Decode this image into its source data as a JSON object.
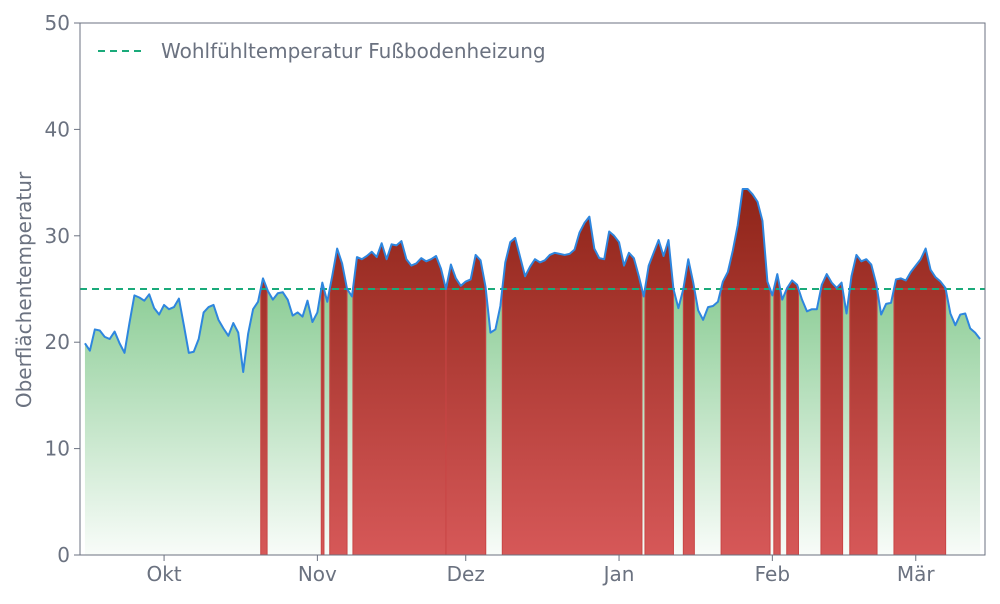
{
  "chart_data": {
    "type": "area",
    "ylabel": "Oberflächentemperatur",
    "xlabel": "",
    "ylim": [
      0,
      50
    ],
    "yticks": [
      0,
      10,
      20,
      30,
      40,
      50
    ],
    "xlim": [
      "2023-09-14",
      "2024-03-15"
    ],
    "x_tick_labels": [
      {
        "label": "Okt",
        "date": "2023-10-01"
      },
      {
        "label": "Nov",
        "date": "2023-11-01"
      },
      {
        "label": "Dez",
        "date": "2023-12-01"
      },
      {
        "label": "Jan",
        "date": "2024-01-01"
      },
      {
        "label": "Feb",
        "date": "2024-02-01"
      },
      {
        "label": "Mär",
        "date": "2024-03-01"
      }
    ],
    "threshold": {
      "name": "Wohlfühltemperatur Fußbodenheizung",
      "value": 25
    },
    "legend_position": "top-left",
    "grid": false,
    "colors": {
      "line": "#2e86de",
      "threshold": "#1aaa7a",
      "below_fill": "#5cb86a",
      "above_fill_top": "#8e2418",
      "above_fill_bottom": "#d65858"
    },
    "series": {
      "start_date": "2023-09-15",
      "step_days": 1,
      "values": [
        19.9,
        19.2,
        21.2,
        21.1,
        20.5,
        20.3,
        21.0,
        19.9,
        19.0,
        21.8,
        24.4,
        24.2,
        23.9,
        24.5,
        23.2,
        22.6,
        23.5,
        23.1,
        23.3,
        24.1,
        21.6,
        19.0,
        19.1,
        20.3,
        22.8,
        23.3,
        23.5,
        22.1,
        21.3,
        20.6,
        21.8,
        20.9,
        17.2,
        20.8,
        23.1,
        23.8,
        26.0,
        24.8,
        24.0,
        24.6,
        24.7,
        24.0,
        22.5,
        22.8,
        22.4,
        23.9,
        21.9,
        22.8,
        25.6,
        23.8,
        26.2,
        28.8,
        27.4,
        25.0,
        24.3,
        28.0,
        27.8,
        28.1,
        28.5,
        28.0,
        29.3,
        27.8,
        29.2,
        29.1,
        29.5,
        27.8,
        27.2,
        27.4,
        27.9,
        27.6,
        27.8,
        28.1,
        26.9,
        25.0,
        27.3,
        26.0,
        25.3,
        25.7,
        25.9,
        28.2,
        27.7,
        25.2,
        20.9,
        21.2,
        23.4,
        27.5,
        29.4,
        29.8,
        28.0,
        26.2,
        27.1,
        27.8,
        27.5,
        27.7,
        28.2,
        28.4,
        28.3,
        28.2,
        28.3,
        28.7,
        30.3,
        31.2,
        31.8,
        28.8,
        27.9,
        27.8,
        30.4,
        30.0,
        29.4,
        27.2,
        28.4,
        27.9,
        26.2,
        24.3,
        27.2,
        28.4,
        29.6,
        28.1,
        29.6,
        25.0,
        23.2,
        25.0,
        27.8,
        25.6,
        23.0,
        22.1,
        23.3,
        23.4,
        23.8,
        25.7,
        26.6,
        28.6,
        31.0,
        34.4,
        34.4,
        33.9,
        33.2,
        31.4,
        25.7,
        24.4,
        26.4,
        24.0,
        25.1,
        25.8,
        25.4,
        24.0,
        22.9,
        23.1,
        23.1,
        25.4,
        26.4,
        25.6,
        25.1,
        25.6,
        22.7,
        26.2,
        28.2,
        27.6,
        27.8,
        27.3,
        25.5,
        22.6,
        23.6,
        23.7,
        25.9,
        26.0,
        25.8,
        26.6,
        27.2,
        27.8,
        28.8,
        26.8,
        26.1,
        25.7,
        25.1,
        22.7,
        21.6,
        22.6,
        22.7,
        21.3,
        20.9,
        20.3
      ]
    }
  }
}
